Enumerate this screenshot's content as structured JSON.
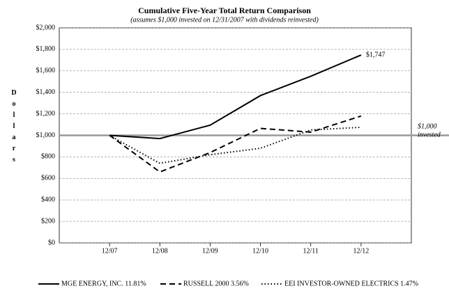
{
  "chart_data": {
    "type": "line",
    "title": "Cumulative Five-Year Total Return Comparison",
    "subtitle": "(assumes $1,000 invested on 12/31/2007 with dividends reinvested)",
    "y_label": "Dollars",
    "categories": [
      "12/07",
      "12/08",
      "12/09",
      "12/10",
      "12/11",
      "12/12"
    ],
    "series": [
      {
        "name": "MGE ENERGY, INC. 11.81%",
        "color": "#000000",
        "dash": "solid",
        "values": [
          1000,
          970,
          1095,
          1370,
          1550,
          1747
        ],
        "value_labels": [
          null,
          null,
          null,
          null,
          null,
          "$1,747"
        ]
      },
      {
        "name": "RUSSELL 2000 3.56%",
        "color": "#000000",
        "dash": "dashed",
        "values": [
          1000,
          660,
          840,
          1065,
          1030,
          1180
        ]
      },
      {
        "name": "EEI INVESTOR-OWNED ELECTRICS 1.47%",
        "color": "#000000",
        "dash": "dotted",
        "values": [
          1000,
          740,
          820,
          880,
          1050,
          1075
        ]
      }
    ],
    "reference_line": {
      "value": 1000,
      "label": "$1,000 invested",
      "color": "#999999"
    },
    "ylim": [
      0,
      2000
    ],
    "yticks": [
      {
        "value": 0,
        "label": "$0"
      },
      {
        "value": 200,
        "label": "$200"
      },
      {
        "value": 400,
        "label": "$400"
      },
      {
        "value": 600,
        "label": "$600"
      },
      {
        "value": 800,
        "label": "$800"
      },
      {
        "value": 1000,
        "label": "$1,000"
      },
      {
        "value": 1200,
        "label": "$1,200"
      },
      {
        "value": 1400,
        "label": "$1,400"
      },
      {
        "value": 1600,
        "label": "$1,600"
      },
      {
        "value": 1800,
        "label": "$1,800"
      },
      {
        "value": 2000,
        "label": "$2,000"
      }
    ],
    "grid": true,
    "legend": "bottom"
  }
}
